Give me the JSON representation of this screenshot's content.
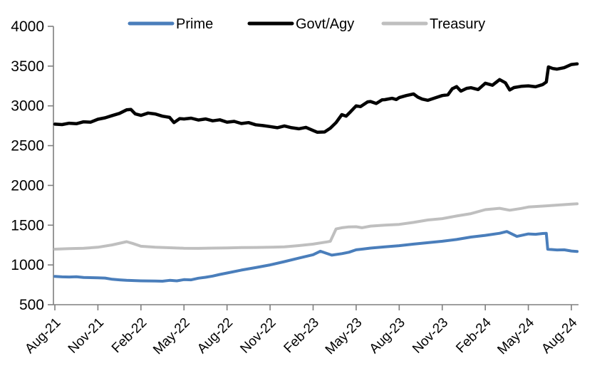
{
  "chart_data": {
    "type": "line",
    "title": "",
    "xlabel": "",
    "ylabel": "",
    "ylim": [
      500,
      4000
    ],
    "ytick_step": 500,
    "y_tick_labels": [
      "500",
      "1000",
      "1500",
      "2000",
      "2500",
      "3000",
      "3500",
      "4000"
    ],
    "x_tick_labels": [
      "Aug-21",
      "Nov-21",
      "Feb-22",
      "May-22",
      "Aug-22",
      "Nov-22",
      "Feb-23",
      "May-23",
      "Aug-23",
      "Nov-23",
      "Feb-24",
      "May-24",
      "Aug-24"
    ],
    "x_unit": "month-index-from-Aug-21",
    "x_range": [
      0,
      36.4
    ],
    "grid": false,
    "legend_position": "top",
    "axis_color": "#7f7f7f",
    "series": [
      {
        "name": "Prime",
        "color": "#4a7ebb",
        "points": [
          [
            0,
            855
          ],
          [
            0.5,
            850
          ],
          [
            1,
            848
          ],
          [
            1.5,
            852
          ],
          [
            2,
            843
          ],
          [
            3,
            838
          ],
          [
            3.5,
            835
          ],
          [
            4,
            820
          ],
          [
            4.5,
            812
          ],
          [
            5,
            806
          ],
          [
            6,
            800
          ],
          [
            7,
            797
          ],
          [
            7.5,
            795
          ],
          [
            8,
            806
          ],
          [
            8.5,
            800
          ],
          [
            9,
            815
          ],
          [
            9.5,
            812
          ],
          [
            10,
            833
          ],
          [
            10.5,
            845
          ],
          [
            11,
            860
          ],
          [
            11.5,
            880
          ],
          [
            12,
            898
          ],
          [
            13,
            935
          ],
          [
            14,
            966
          ],
          [
            15,
            1000
          ],
          [
            16,
            1042
          ],
          [
            17,
            1085
          ],
          [
            18,
            1128
          ],
          [
            18.5,
            1172
          ],
          [
            19.3,
            1123
          ],
          [
            20,
            1142
          ],
          [
            20.5,
            1160
          ],
          [
            21,
            1190
          ],
          [
            21.5,
            1200
          ],
          [
            22,
            1212
          ],
          [
            23,
            1227
          ],
          [
            24,
            1242
          ],
          [
            25,
            1262
          ],
          [
            26,
            1280
          ],
          [
            27,
            1298
          ],
          [
            28,
            1320
          ],
          [
            29,
            1350
          ],
          [
            30,
            1372
          ],
          [
            31,
            1398
          ],
          [
            31.5,
            1420
          ],
          [
            32.2,
            1358
          ],
          [
            33,
            1390
          ],
          [
            33.5,
            1385
          ],
          [
            34,
            1395
          ],
          [
            34.25,
            1398
          ],
          [
            34.35,
            1197
          ],
          [
            35,
            1188
          ],
          [
            35.5,
            1190
          ],
          [
            36,
            1175
          ],
          [
            36.4,
            1170
          ]
        ]
      },
      {
        "name": "Govt/Agy",
        "color": "#000000",
        "points": [
          [
            0,
            2770
          ],
          [
            0.5,
            2765
          ],
          [
            1,
            2782
          ],
          [
            1.5,
            2775
          ],
          [
            2,
            2800
          ],
          [
            2.5,
            2795
          ],
          [
            3,
            2832
          ],
          [
            3.5,
            2850
          ],
          [
            4,
            2878
          ],
          [
            4.5,
            2905
          ],
          [
            5,
            2950
          ],
          [
            5.3,
            2955
          ],
          [
            5.6,
            2900
          ],
          [
            6,
            2880
          ],
          [
            6.5,
            2910
          ],
          [
            7,
            2898
          ],
          [
            7.5,
            2870
          ],
          [
            8,
            2855
          ],
          [
            8.3,
            2790
          ],
          [
            8.7,
            2840
          ],
          [
            9,
            2835
          ],
          [
            9.5,
            2845
          ],
          [
            10,
            2822
          ],
          [
            10.5,
            2835
          ],
          [
            11,
            2812
          ],
          [
            11.5,
            2825
          ],
          [
            12,
            2795
          ],
          [
            12.5,
            2805
          ],
          [
            13,
            2778
          ],
          [
            13.5,
            2790
          ],
          [
            14,
            2762
          ],
          [
            14.5,
            2752
          ],
          [
            15,
            2740
          ],
          [
            15.5,
            2725
          ],
          [
            16,
            2748
          ],
          [
            16.5,
            2725
          ],
          [
            17,
            2712
          ],
          [
            17.5,
            2730
          ],
          [
            18,
            2690
          ],
          [
            18.3,
            2668
          ],
          [
            18.8,
            2672
          ],
          [
            19.2,
            2720
          ],
          [
            19.6,
            2790
          ],
          [
            20,
            2890
          ],
          [
            20.3,
            2870
          ],
          [
            20.6,
            2925
          ],
          [
            21,
            3000
          ],
          [
            21.3,
            2990
          ],
          [
            21.8,
            3050
          ],
          [
            22,
            3055
          ],
          [
            22.4,
            3030
          ],
          [
            22.8,
            3075
          ],
          [
            23,
            3078
          ],
          [
            23.5,
            3095
          ],
          [
            23.8,
            3080
          ],
          [
            24,
            3104
          ],
          [
            24.5,
            3130
          ],
          [
            25,
            3150
          ],
          [
            25.3,
            3110
          ],
          [
            25.6,
            3085
          ],
          [
            26,
            3070
          ],
          [
            26.5,
            3100
          ],
          [
            27,
            3130
          ],
          [
            27.4,
            3140
          ],
          [
            27.7,
            3215
          ],
          [
            28,
            3242
          ],
          [
            28.3,
            3185
          ],
          [
            28.7,
            3220
          ],
          [
            29,
            3228
          ],
          [
            29.5,
            3205
          ],
          [
            30,
            3285
          ],
          [
            30.5,
            3260
          ],
          [
            31,
            3330
          ],
          [
            31.4,
            3290
          ],
          [
            31.7,
            3200
          ],
          [
            32,
            3230
          ],
          [
            32.5,
            3245
          ],
          [
            33,
            3252
          ],
          [
            33.5,
            3240
          ],
          [
            34,
            3268
          ],
          [
            34.25,
            3300
          ],
          [
            34.4,
            3490
          ],
          [
            34.7,
            3470
          ],
          [
            35,
            3462
          ],
          [
            35.5,
            3480
          ],
          [
            36,
            3520
          ],
          [
            36.4,
            3528
          ]
        ]
      },
      {
        "name": "Treasury",
        "color": "#bfbfbf",
        "points": [
          [
            0,
            1198
          ],
          [
            1,
            1205
          ],
          [
            2,
            1210
          ],
          [
            3,
            1222
          ],
          [
            4,
            1252
          ],
          [
            5,
            1292
          ],
          [
            5.4,
            1272
          ],
          [
            6,
            1235
          ],
          [
            7,
            1222
          ],
          [
            8,
            1216
          ],
          [
            9,
            1210
          ],
          [
            10,
            1208
          ],
          [
            11,
            1212
          ],
          [
            12,
            1213
          ],
          [
            13,
            1218
          ],
          [
            14,
            1220
          ],
          [
            15,
            1222
          ],
          [
            16,
            1228
          ],
          [
            17,
            1243
          ],
          [
            18,
            1262
          ],
          [
            19,
            1290
          ],
          [
            19.2,
            1298
          ],
          [
            19.6,
            1452
          ],
          [
            20,
            1468
          ],
          [
            20.5,
            1478
          ],
          [
            21,
            1480
          ],
          [
            21.4,
            1468
          ],
          [
            22,
            1488
          ],
          [
            23,
            1500
          ],
          [
            24,
            1510
          ],
          [
            25,
            1535
          ],
          [
            26,
            1565
          ],
          [
            27,
            1582
          ],
          [
            28,
            1615
          ],
          [
            29,
            1645
          ],
          [
            30,
            1695
          ],
          [
            31,
            1712
          ],
          [
            31.7,
            1688
          ],
          [
            32.5,
            1710
          ],
          [
            33,
            1728
          ],
          [
            34,
            1740
          ],
          [
            35,
            1752
          ],
          [
            36,
            1765
          ],
          [
            36.4,
            1768
          ]
        ]
      }
    ]
  }
}
